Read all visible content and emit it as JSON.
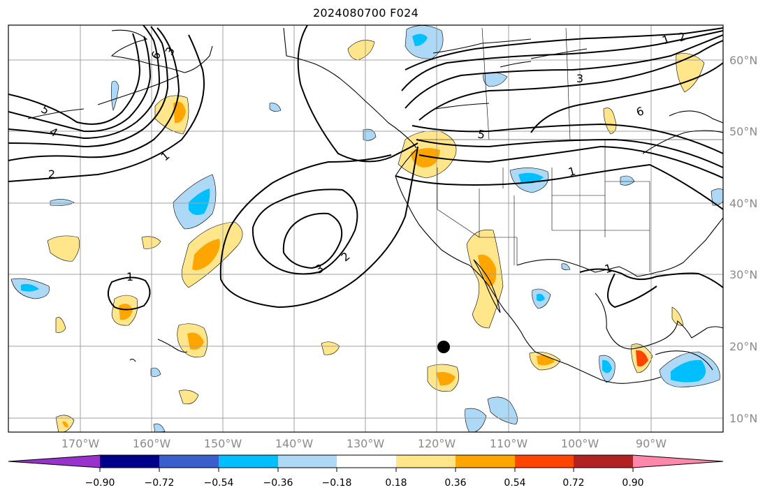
{
  "title": "2024080700 F024",
  "lat_labels": [
    "60°N",
    "50°N",
    "40°N",
    "30°N",
    "20°N",
    "10°N"
  ],
  "lon_labels": [
    "170°W",
    "160°W",
    "150°W",
    "140°W",
    "130°W",
    "120°W",
    "110°W",
    "100°W",
    "90°W"
  ],
  "contour_labels": {
    "alaska": [
      "6",
      "3"
    ],
    "aleutian": [
      "5",
      "4",
      "1",
      "2"
    ],
    "pacific_high": [
      "3",
      "2"
    ],
    "hawaii_low": [
      "1"
    ],
    "canada": [
      "1",
      "2",
      "3",
      "6",
      "5",
      "1"
    ],
    "gulf": [
      "1"
    ]
  },
  "colorbar": {
    "tick_labels": [
      "−0.90",
      "−0.72",
      "−0.54",
      "−0.36",
      "−0.18",
      "0.18",
      "0.36",
      "0.54",
      "0.72",
      "0.90"
    ],
    "colors": [
      "#9932cc",
      "#00008b",
      "#3a5fcd",
      "#00bfff",
      "#add8f6",
      "#ffffff",
      "#ffe68a",
      "#ffa500",
      "#ff4500",
      "#b22222",
      "#ff88aa"
    ]
  },
  "marker": {
    "label": "",
    "color": "#000000"
  }
}
